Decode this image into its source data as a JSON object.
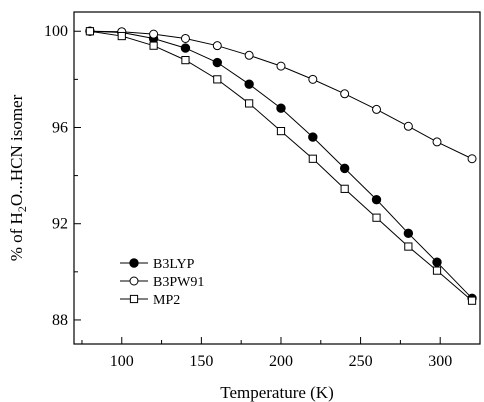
{
  "chart_data": {
    "type": "line",
    "xlabel": "Temperature (K)",
    "ylabel_parts": [
      "% of H",
      "2",
      "O...HCN isomer"
    ],
    "xlim": [
      70,
      325
    ],
    "ylim": [
      87,
      100.8
    ],
    "x_ticks_major": [
      100,
      150,
      200,
      250,
      300
    ],
    "x_ticks_minor": [
      75,
      125,
      175,
      225,
      275,
      325
    ],
    "y_ticks_major": [
      88,
      92,
      96,
      100
    ],
    "y_ticks_minor": [
      90,
      94,
      98
    ],
    "legend_position": "lower-left",
    "series": [
      {
        "name": "B3LYP",
        "marker": "filled-circle",
        "x": [
          80,
          100,
          120,
          140,
          160,
          180,
          200,
          220,
          240,
          260,
          280,
          298,
          320
        ],
        "y": [
          100.0,
          99.95,
          99.7,
          99.3,
          98.7,
          97.8,
          96.8,
          95.6,
          94.3,
          93.0,
          91.6,
          90.4,
          88.9
        ]
      },
      {
        "name": "B3PW91",
        "marker": "open-circle",
        "x": [
          80,
          100,
          120,
          140,
          160,
          180,
          200,
          220,
          240,
          260,
          280,
          298,
          320
        ],
        "y": [
          100.0,
          99.98,
          99.88,
          99.7,
          99.4,
          99.0,
          98.55,
          98.0,
          97.4,
          96.75,
          96.05,
          95.4,
          94.7
        ]
      },
      {
        "name": "MP2",
        "marker": "open-square",
        "x": [
          80,
          100,
          120,
          140,
          160,
          180,
          200,
          220,
          240,
          260,
          280,
          298,
          320
        ],
        "y": [
          100.0,
          99.8,
          99.4,
          98.8,
          98.0,
          97.0,
          95.85,
          94.7,
          93.45,
          92.25,
          91.05,
          90.05,
          88.8
        ]
      }
    ]
  }
}
